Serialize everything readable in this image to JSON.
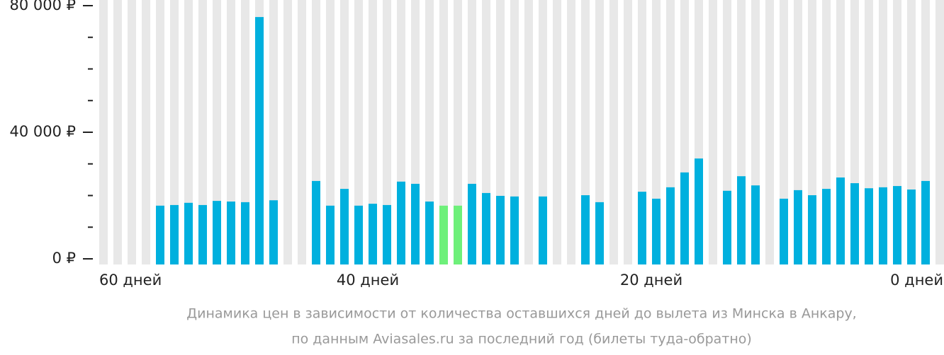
{
  "chart_data": {
    "type": "bar",
    "values": [
      null,
      null,
      null,
      null,
      16800,
      17000,
      17700,
      17000,
      18300,
      18100,
      17900,
      76400,
      18500,
      null,
      null,
      24600,
      16800,
      22100,
      16800,
      17400,
      17000,
      24400,
      23700,
      18100,
      16800,
      16800,
      23700,
      20800,
      19900,
      19700,
      null,
      19700,
      null,
      null,
      20100,
      17900,
      null,
      null,
      21200,
      19000,
      22600,
      27300,
      31700,
      null,
      21500,
      26100,
      23200,
      null,
      19000,
      21700,
      20100,
      22100,
      25700,
      23900,
      22300,
      22600,
      23000,
      21900,
      24600,
      null
    ],
    "colors": [
      null,
      null,
      null,
      null,
      "#00b0de",
      "#00b0de",
      "#00b0de",
      "#00b0de",
      "#00b0de",
      "#00b0de",
      "#00b0de",
      "#00b0de",
      "#00b0de",
      null,
      null,
      "#00b0de",
      "#00b0de",
      "#00b0de",
      "#00b0de",
      "#00b0de",
      "#00b0de",
      "#00b0de",
      "#00b0de",
      "#00b0de",
      "#6ef07a",
      "#6ef07a",
      "#00b0de",
      "#00b0de",
      "#00b0de",
      "#00b0de",
      null,
      "#00b0de",
      null,
      null,
      "#00b0de",
      "#00b0de",
      null,
      null,
      "#00b0de",
      "#00b0de",
      "#00b0de",
      "#00b0de",
      "#00b0de",
      null,
      "#00b0de",
      "#00b0de",
      "#00b0de",
      null,
      "#00b0de",
      "#00b0de",
      "#00b0de",
      "#00b0de",
      "#00b0de",
      "#00b0de",
      "#00b0de",
      "#00b0de",
      "#00b0de",
      "#00b0de",
      "#00b0de",
      null
    ],
    "background_color": "#e8e8e8",
    "ylim": [
      0,
      80000
    ],
    "yticks": [
      {
        "value": 0,
        "label": "0 ₽"
      },
      {
        "value": 40000,
        "label": "40 000 ₽"
      },
      {
        "value": 80000,
        "label": "80 000 ₽"
      }
    ],
    "yminorticks": [
      10000,
      20000,
      30000,
      50000,
      60000,
      70000
    ],
    "xlim": [
      60,
      0
    ],
    "xticks": [
      {
        "value": 60,
        "label": "60 дней"
      },
      {
        "value": 40,
        "label": "40 дней"
      },
      {
        "value": 20,
        "label": "20 дней"
      },
      {
        "value": 0,
        "label": "0 дней"
      }
    ],
    "caption": [
      "Динамика цен в зависимости от количества оставшихся дней до вылета из Минска в Анкару,",
      "по данным Aviasales.ru за последний год (билеты туда-обратно)"
    ]
  }
}
